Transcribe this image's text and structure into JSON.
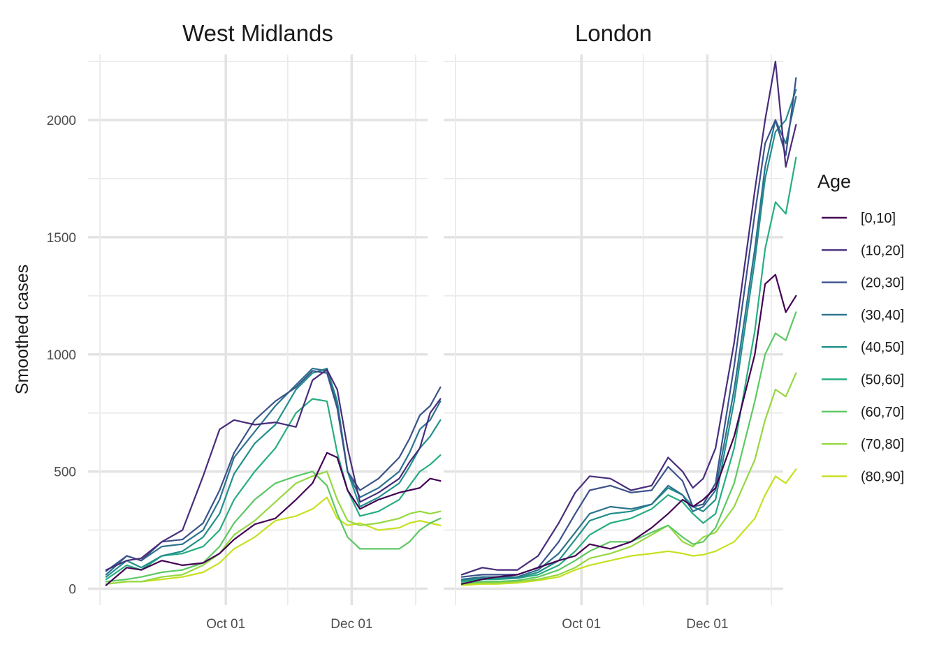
{
  "chart_data": {
    "type": "line",
    "ylabel": "Smoothed cases",
    "xlabel": "",
    "ylim": [
      -70,
      2280
    ],
    "xlim": [
      "2021-08-01",
      "2021-12-31"
    ],
    "y_major_ticks": [
      0,
      500,
      1000,
      1500,
      2000
    ],
    "y_minor_ticks": [
      250,
      750,
      1250,
      1750,
      2250
    ],
    "x_major_ticks": [
      "Oct 01",
      "Dec 01"
    ],
    "x_major_days": [
      61,
      122
    ],
    "x_minor_days": [
      0,
      91,
      153
    ],
    "legend": {
      "title": "Age",
      "position": "right"
    },
    "series_names": [
      "[0,10]",
      "(10,20]",
      "(20,30]",
      "(30,40]",
      "(40,50]",
      "(50,60]",
      "(60,70]",
      "(70,80]",
      "(80,90]"
    ],
    "series_colors": [
      "#440154",
      "#472D7B",
      "#3B528B",
      "#2C728E",
      "#21908C",
      "#27AD81",
      "#5DC863",
      "#95D840",
      "#C7E020"
    ],
    "x_days": [
      3,
      13,
      20,
      30,
      40,
      50,
      58,
      65,
      75,
      85,
      95,
      103,
      110,
      115,
      120,
      126,
      135,
      145,
      150,
      155,
      160,
      165
    ],
    "facets": [
      {
        "title": "West Midlands",
        "series": [
          {
            "name": "[0,10]",
            "values": [
              15,
              90,
              80,
              120,
              100,
              110,
              150,
              210,
              275,
              300,
              380,
              450,
              580,
              560,
              420,
              340,
              380,
              410,
              420,
              430,
              470,
              460
            ]
          },
          {
            "name": "(10,20]",
            "values": [
              80,
              120,
              130,
              200,
              250,
              480,
              680,
              720,
              700,
              710,
              690,
              890,
              935,
              850,
              600,
              370,
              410,
              470,
              540,
              600,
              750,
              810
            ]
          },
          {
            "name": "(20,30]",
            "values": [
              75,
              140,
              120,
              200,
              210,
              280,
              420,
              580,
              720,
              800,
              860,
              930,
              920,
              770,
              500,
              420,
              470,
              560,
              640,
              740,
              780,
              860
            ]
          },
          {
            "name": "(30,40]",
            "values": [
              60,
              140,
              120,
              180,
              190,
              250,
              380,
              560,
              670,
              780,
              870,
              940,
              930,
              780,
              500,
              390,
              430,
              500,
              580,
              680,
              720,
              800
            ]
          },
          {
            "name": "(40,50]",
            "values": [
              50,
              120,
              90,
              140,
              160,
              220,
              320,
              490,
              620,
              700,
              850,
              920,
              940,
              800,
              500,
              350,
              390,
              450,
              520,
              600,
              650,
              720
            ]
          },
          {
            "name": "(50,60]",
            "values": [
              40,
              100,
              80,
              140,
              150,
              180,
              250,
              380,
              500,
              600,
              750,
              810,
              800,
              580,
              420,
              310,
              330,
              380,
              440,
              500,
              530,
              570
            ]
          },
          {
            "name": "(60,70]",
            "values": [
              30,
              40,
              50,
              70,
              80,
              110,
              180,
              280,
              380,
              450,
              480,
              500,
              440,
              320,
              220,
              170,
              170,
              170,
              200,
              250,
              280,
              300
            ]
          },
          {
            "name": "(70,80]",
            "values": [
              20,
              30,
              30,
              50,
              60,
              100,
              150,
              230,
              290,
              370,
              450,
              480,
              500,
              380,
              290,
              270,
              280,
              300,
              320,
              330,
              320,
              330
            ]
          },
          {
            "name": "(80,90]",
            "values": [
              20,
              30,
              30,
              40,
              50,
              70,
              110,
              170,
              220,
              290,
              310,
              340,
              390,
              300,
              270,
              280,
              250,
              260,
              280,
              290,
              280,
              270
            ]
          }
        ]
      },
      {
        "title": "London",
        "series": [
          {
            "name": "[0,10]",
            "values": [
              20,
              40,
              50,
              60,
              90,
              120,
              140,
              190,
              170,
              200,
              260,
              320,
              380,
              350,
              380,
              430,
              650,
              1000,
              1300,
              1340,
              1180,
              1250
            ]
          },
          {
            "name": "(10,20]",
            "values": [
              60,
              90,
              80,
              80,
              140,
              280,
              410,
              480,
              470,
              420,
              440,
              560,
              500,
              430,
              470,
              600,
              1050,
              1700,
              2000,
              2250,
              1800,
              1980
            ]
          },
          {
            "name": "(20,30]",
            "values": [
              50,
              60,
              60,
              60,
              90,
              200,
              320,
              420,
              440,
              410,
              420,
              520,
              460,
              350,
              360,
              450,
              950,
              1600,
              1900,
              2000,
              1850,
              2180
            ]
          },
          {
            "name": "(30,40]",
            "values": [
              40,
              50,
              50,
              50,
              80,
              150,
              240,
              320,
              350,
              340,
              360,
              440,
              400,
              330,
              350,
              420,
              850,
              1450,
              1800,
              2000,
              1900,
              2100
            ]
          },
          {
            "name": "(40,50]",
            "values": [
              35,
              45,
              45,
              45,
              70,
              120,
              210,
              290,
              320,
              330,
              360,
              430,
              400,
              350,
              330,
              380,
              800,
              1400,
              1750,
              1950,
              2000,
              2130
            ]
          },
          {
            "name": "(50,60]",
            "values": [
              30,
              40,
              40,
              45,
              60,
              100,
              160,
              230,
              280,
              300,
              340,
              400,
              370,
              320,
              280,
              320,
              600,
              1100,
              1450,
              1650,
              1600,
              1840
            ]
          },
          {
            "name": "(60,70]",
            "values": [
              25,
              30,
              30,
              35,
              50,
              80,
              120,
              160,
              200,
              200,
              240,
              270,
              220,
              190,
              200,
              260,
              450,
              800,
              1000,
              1090,
              1060,
              1180
            ]
          },
          {
            "name": "(70,80]",
            "values": [
              20,
              25,
              25,
              30,
              40,
              60,
              90,
              130,
              150,
              180,
              230,
              270,
              200,
              180,
              220,
              240,
              350,
              550,
              720,
              850,
              820,
              920
            ]
          },
          {
            "name": "(80,90]",
            "values": [
              15,
              20,
              20,
              25,
              35,
              50,
              80,
              100,
              120,
              140,
              150,
              160,
              150,
              140,
              145,
              160,
              200,
              300,
              400,
              480,
              450,
              510
            ]
          }
        ]
      }
    ]
  }
}
